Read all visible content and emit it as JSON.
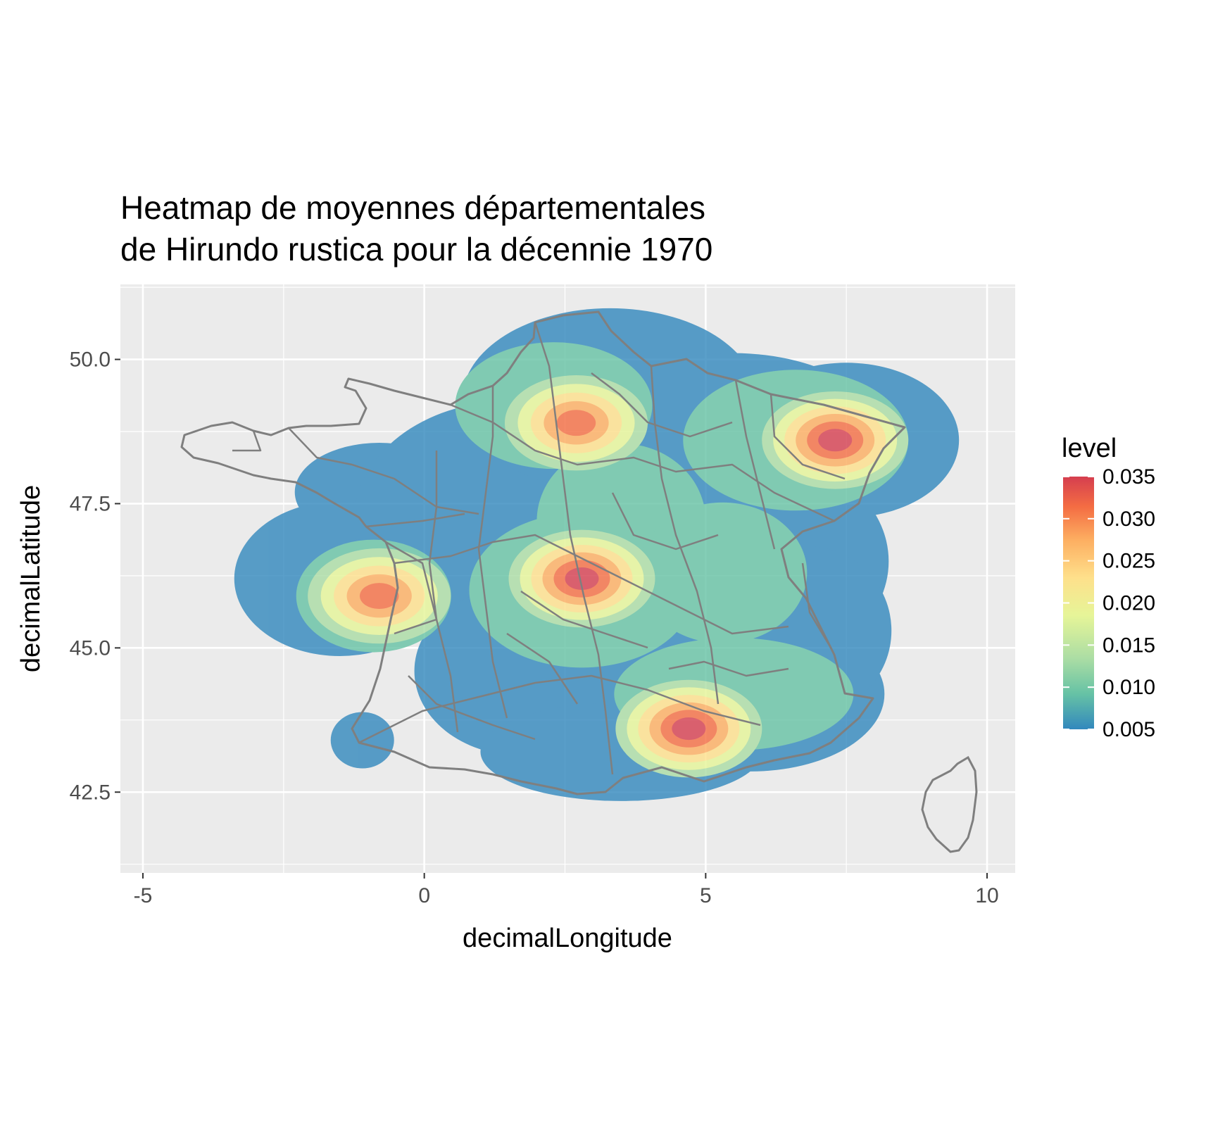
{
  "chart_data": {
    "type": "heatmap",
    "title_lines": [
      "Heatmap de moyennes départementales",
      "de Hirundo rustica pour la décennie 1970"
    ],
    "xlabel": "decimalLongitude",
    "ylabel": "decimalLatitude",
    "xlim": [
      -5.4,
      10.5
    ],
    "ylim": [
      41.1,
      51.3
    ],
    "x_ticks": [
      -5,
      0,
      5,
      10
    ],
    "x_tick_labels": [
      "-5",
      "0",
      "5",
      "10"
    ],
    "y_ticks": [
      42.5,
      45.0,
      47.5,
      50.0
    ],
    "y_tick_labels": [
      "42.5",
      "45.0",
      "47.5",
      "50.0"
    ],
    "grid": true,
    "legend": {
      "title": "level",
      "position": "right",
      "breaks": [
        0.005,
        0.01,
        0.015,
        0.02,
        0.025,
        0.03,
        0.035
      ],
      "labels": [
        "0.005",
        "0.010",
        "0.015",
        "0.020",
        "0.025",
        "0.030",
        "0.035"
      ],
      "colors": [
        "#3288bd",
        "#66c2a5",
        "#abdda4",
        "#e6f598",
        "#fee08b",
        "#fdae61",
        "#f46d43",
        "#d53e4f"
      ]
    },
    "hotspots": [
      {
        "lon": 2.8,
        "lat": 46.2,
        "peak": 0.035
      },
      {
        "lon": 4.7,
        "lat": 43.6,
        "peak": 0.035
      },
      {
        "lon": 7.3,
        "lat": 48.6,
        "peak": 0.034
      },
      {
        "lon": -0.8,
        "lat": 45.9,
        "peak": 0.029
      },
      {
        "lon": 2.7,
        "lat": 48.9,
        "peak": 0.028
      }
    ]
  },
  "colors": {
    "panel_background": "#ebebeb",
    "grid_major": "#ffffff",
    "boundary": "#7f7f7f"
  }
}
